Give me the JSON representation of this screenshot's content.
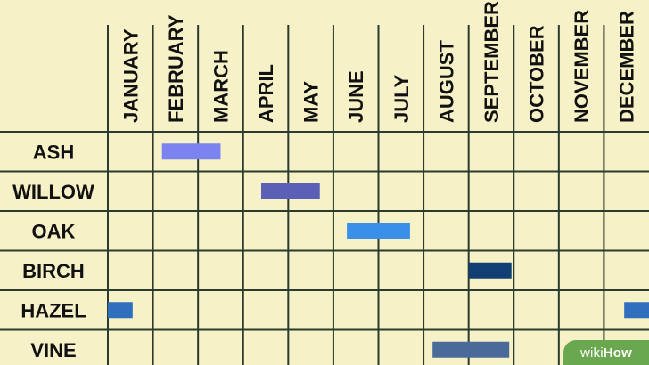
{
  "months": [
    "JANUARY",
    "FEBRUARY",
    "MARCH",
    "APRIL",
    "MAY",
    "JUNE",
    "JULY",
    "AUGUST",
    "SEPTEMBER",
    "OCTOBER",
    "NOVEMBER",
    "DECEMBER"
  ],
  "rows": [
    {
      "label": "ASH",
      "bars": [
        {
          "start": 1.2,
          "end": 2.5,
          "color": "#7b83f0"
        }
      ]
    },
    {
      "label": "WILLOW",
      "bars": [
        {
          "start": 3.4,
          "end": 4.7,
          "color": "#5b5fb5"
        }
      ]
    },
    {
      "label": "OAK",
      "bars": [
        {
          "start": 5.3,
          "end": 6.7,
          "color": "#3a8fe8"
        }
      ]
    },
    {
      "label": "BIRCH",
      "bars": [
        {
          "start": 8.0,
          "end": 8.95,
          "color": "#123f73"
        }
      ]
    },
    {
      "label": "HAZEL",
      "bars": [
        {
          "start": 0.0,
          "end": 0.55,
          "color": "#2f6fbd"
        },
        {
          "start": 11.45,
          "end": 12.0,
          "color": "#2f6fbd"
        }
      ]
    },
    {
      "label": "VINE",
      "bars": [
        {
          "start": 7.2,
          "end": 8.9,
          "color": "#4a6a9a"
        }
      ]
    }
  ],
  "colors": {
    "background": "#f6f1c6",
    "grid": "#2b3b2e",
    "logo": "#6aa84f"
  },
  "logo": {
    "part1": "wiki",
    "part2": "How"
  }
}
